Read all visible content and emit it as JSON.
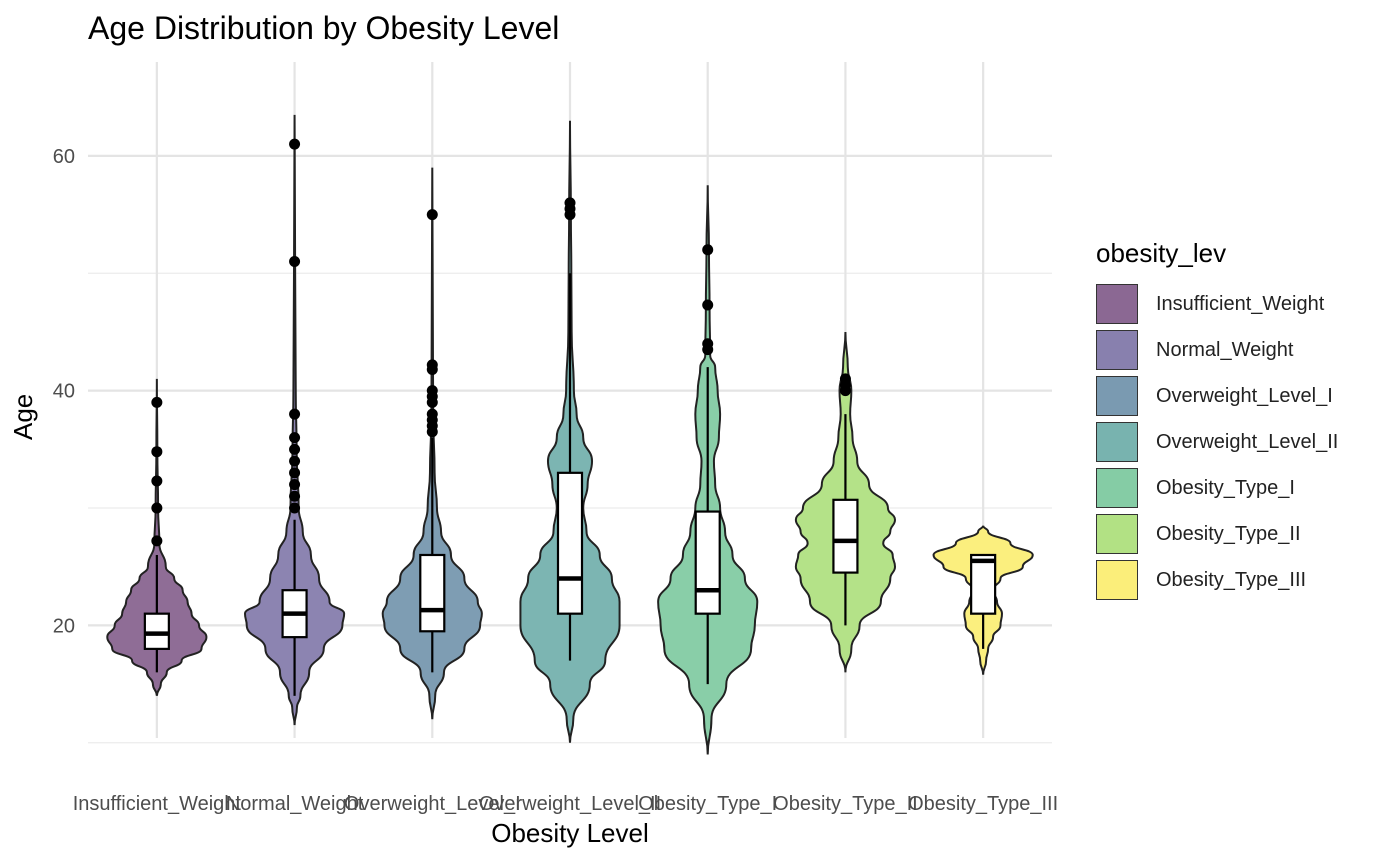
{
  "chart_data": {
    "type": "violin",
    "title": "Age Distribution by Obesity Level",
    "xlabel": "Obesity Level",
    "ylabel": "Age",
    "ylim": [
      7,
      68
    ],
    "yticks": [
      20,
      40,
      60
    ],
    "grid": true,
    "legend_title": "obesity_lev",
    "legend_position": "right",
    "categories": [
      "Insufficient_Weight",
      "Normal_Weight",
      "Overweight_Level_I",
      "Overweight_Level_II",
      "Obesity_Type_I",
      "Obesity_Type_II",
      "Obesity_Type_III"
    ],
    "colors": [
      "#8B6893",
      "#8880AE",
      "#7A9AB1",
      "#78B3AF",
      "#85CCA5",
      "#B2E184",
      "#FBEE7A"
    ],
    "series": [
      {
        "name": "Insufficient_Weight",
        "box": {
          "q1": 18,
          "median": 19.3,
          "q3": 21,
          "whisker_low": 16,
          "whisker_high": 26
        },
        "outliers": [
          27.2,
          30,
          32.3,
          34.8,
          39
        ],
        "violin": [
          [
            14,
            0
          ],
          [
            15,
            0.08
          ],
          [
            16,
            0.2
          ],
          [
            17,
            0.5
          ],
          [
            18,
            0.9
          ],
          [
            19,
            1.0
          ],
          [
            20,
            0.85
          ],
          [
            21,
            0.7
          ],
          [
            22,
            0.62
          ],
          [
            23,
            0.52
          ],
          [
            24,
            0.35
          ],
          [
            25,
            0.18
          ],
          [
            27,
            0.05
          ],
          [
            30,
            0.025
          ],
          [
            35,
            0.01
          ],
          [
            41,
            0
          ]
        ]
      },
      {
        "name": "Normal_Weight",
        "box": {
          "q1": 19,
          "median": 21,
          "q3": 23,
          "whisker_low": 14,
          "whisker_high": 29
        },
        "outliers": [
          30,
          31,
          32,
          33,
          34,
          35,
          36,
          38,
          51,
          61
        ],
        "violin": [
          [
            11.5,
            0
          ],
          [
            13,
            0.04
          ],
          [
            14,
            0.1
          ],
          [
            16,
            0.25
          ],
          [
            18,
            0.5
          ],
          [
            20,
            0.82
          ],
          [
            21,
            0.85
          ],
          [
            22,
            0.6
          ],
          [
            24,
            0.42
          ],
          [
            26,
            0.28
          ],
          [
            28,
            0.14
          ],
          [
            30,
            0.07
          ],
          [
            35,
            0.035
          ],
          [
            40,
            0.02
          ],
          [
            50,
            0.01
          ],
          [
            63.5,
            0
          ]
        ]
      },
      {
        "name": "Overweight_Level_I",
        "box": {
          "q1": 19.5,
          "median": 21.3,
          "q3": 26,
          "whisker_low": 16,
          "whisker_high": 36
        },
        "outliers": [
          36.5,
          37,
          37.5,
          38,
          39,
          39.5,
          40,
          41.8,
          42.2,
          55
        ],
        "violin": [
          [
            12,
            0
          ],
          [
            14,
            0.05
          ],
          [
            16,
            0.2
          ],
          [
            18,
            0.55
          ],
          [
            20,
            0.82
          ],
          [
            21,
            0.85
          ],
          [
            22,
            0.78
          ],
          [
            24,
            0.55
          ],
          [
            26,
            0.32
          ],
          [
            28,
            0.15
          ],
          [
            30,
            0.08
          ],
          [
            33,
            0.04
          ],
          [
            38,
            0.015
          ],
          [
            45,
            0.01
          ],
          [
            59,
            0
          ]
        ]
      },
      {
        "name": "Overweight_Level_II",
        "box": {
          "q1": 21,
          "median": 24,
          "q3": 33,
          "whisker_low": 17,
          "whisker_high": 50
        },
        "outliers": [
          55,
          55.5,
          56
        ],
        "violin": [
          [
            10,
            0
          ],
          [
            12,
            0.03
          ],
          [
            15,
            0.18
          ],
          [
            17,
            0.32
          ],
          [
            20,
            0.45
          ],
          [
            22,
            0.45
          ],
          [
            24,
            0.38
          ],
          [
            26,
            0.27
          ],
          [
            28,
            0.15
          ],
          [
            30,
            0.12
          ],
          [
            32,
            0.16
          ],
          [
            34,
            0.2
          ],
          [
            36,
            0.12
          ],
          [
            38,
            0.06
          ],
          [
            40,
            0.035
          ],
          [
            45,
            0.015
          ],
          [
            50,
            0.012
          ],
          [
            55,
            0.008
          ],
          [
            63,
            0
          ]
        ]
      },
      {
        "name": "Obesity_Type_I",
        "box": {
          "q1": 21,
          "median": 23,
          "q3": 29.7,
          "whisker_low": 15,
          "whisker_high": 42
        },
        "outliers": [
          43.5,
          44,
          47.3,
          52
        ],
        "violin": [
          [
            9,
            0
          ],
          [
            12,
            0.03
          ],
          [
            15,
            0.15
          ],
          [
            18,
            0.35
          ],
          [
            20,
            0.38
          ],
          [
            22,
            0.4
          ],
          [
            24,
            0.3
          ],
          [
            26,
            0.2
          ],
          [
            28,
            0.14
          ],
          [
            30,
            0.1
          ],
          [
            32,
            0.06
          ],
          [
            34,
            0.05
          ],
          [
            36,
            0.09
          ],
          [
            38,
            0.1
          ],
          [
            40,
            0.08
          ],
          [
            42,
            0.06
          ],
          [
            43,
            0.02
          ],
          [
            47,
            0.015
          ],
          [
            52,
            0.01
          ],
          [
            57.5,
            0
          ]
        ]
      },
      {
        "name": "Obesity_Type_II",
        "box": {
          "q1": 24.5,
          "median": 27.2,
          "q3": 30.7,
          "whisker_low": 20,
          "whisker_high": 38
        },
        "outliers": [
          40,
          40.5,
          41
        ],
        "violin": [
          [
            16,
            0
          ],
          [
            18,
            0.05
          ],
          [
            20,
            0.12
          ],
          [
            22,
            0.3
          ],
          [
            24,
            0.38
          ],
          [
            25,
            0.42
          ],
          [
            26,
            0.4
          ],
          [
            27,
            0.32
          ],
          [
            28,
            0.38
          ],
          [
            29,
            0.42
          ],
          [
            30,
            0.36
          ],
          [
            32,
            0.2
          ],
          [
            34,
            0.1
          ],
          [
            36,
            0.06
          ],
          [
            38,
            0.04
          ],
          [
            40,
            0.05
          ],
          [
            42,
            0.02
          ],
          [
            45,
            0
          ]
        ]
      },
      {
        "name": "Obesity_Type_III",
        "box": {
          "q1": 21,
          "median": 25.5,
          "q3": 26,
          "whisker_low": 18,
          "whisker_high": 26
        },
        "outliers": [],
        "violin": [
          [
            15.8,
            0
          ],
          [
            17,
            0.06
          ],
          [
            18,
            0.1
          ],
          [
            19,
            0.2
          ],
          [
            20,
            0.35
          ],
          [
            21,
            0.38
          ],
          [
            22,
            0.28
          ],
          [
            23,
            0.2
          ],
          [
            24,
            0.35
          ],
          [
            25,
            0.8
          ],
          [
            26,
            1.0
          ],
          [
            27,
            0.55
          ],
          [
            28,
            0.1
          ],
          [
            28.5,
            0
          ]
        ]
      }
    ]
  }
}
